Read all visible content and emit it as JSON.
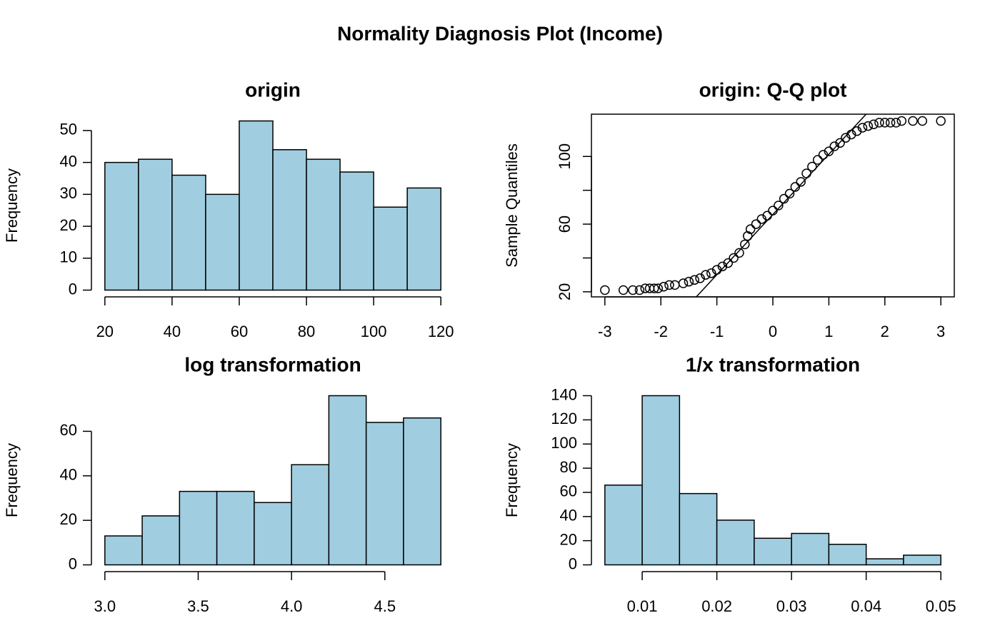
{
  "title": "Normality Diagnosis Plot (Income)",
  "chart_data": [
    {
      "type": "histogram",
      "title": "origin",
      "ylabel": "Frequency",
      "color": "#a0cee0",
      "bins": [
        20,
        30,
        40,
        50,
        60,
        70,
        80,
        90,
        100,
        110,
        120
      ],
      "values": [
        40,
        41,
        36,
        30,
        53,
        44,
        41,
        37,
        26,
        32
      ],
      "xlim": [
        16,
        124
      ],
      "ylim": [
        -2.12,
        55.12
      ],
      "xticks": [
        20,
        40,
        60,
        80,
        100,
        120
      ],
      "yticks": [
        0,
        10,
        20,
        30,
        40,
        50
      ]
    },
    {
      "type": "scatter",
      "title": "origin: Q-Q plot",
      "ylabel": "Sample Quantiles",
      "ytick_rotate": true,
      "box": true,
      "x": [
        -3.0,
        -2.67,
        -2.5,
        -2.38,
        -2.28,
        -2.2,
        -2.12,
        -2.05,
        -1.95,
        -1.85,
        -1.75,
        -1.6,
        -1.5,
        -1.4,
        -1.3,
        -1.2,
        -1.1,
        -1.0,
        -0.9,
        -0.8,
        -0.7,
        -0.6,
        -0.5,
        -0.45,
        -0.4,
        -0.3,
        -0.2,
        -0.1,
        0,
        0.1,
        0.2,
        0.3,
        0.4,
        0.5,
        0.6,
        0.7,
        0.8,
        0.9,
        1.0,
        1.1,
        1.2,
        1.3,
        1.4,
        1.5,
        1.6,
        1.7,
        1.8,
        1.9,
        2.0,
        2.1,
        2.2,
        2.3,
        2.5,
        2.67,
        3.0
      ],
      "values": [
        21,
        21,
        21,
        21,
        22,
        22,
        22,
        22,
        23,
        24,
        24,
        25,
        26,
        27,
        28,
        30,
        31,
        33,
        35,
        37,
        40,
        43,
        48,
        53,
        57,
        60,
        63,
        65,
        68,
        71,
        75,
        78,
        82,
        85,
        90,
        94,
        98,
        101,
        103,
        106,
        108,
        111,
        113,
        115,
        117,
        118,
        119,
        120,
        120,
        120,
        120,
        121,
        121,
        121,
        121
      ],
      "qqline": {
        "intercept": 65.7,
        "slope": 35.6
      },
      "xlim": [
        -3.24,
        3.24
      ],
      "ylim": [
        17,
        125
      ],
      "xticks": [
        -3,
        -2,
        -1,
        0,
        1,
        2,
        3
      ],
      "yticks": [
        20,
        60,
        100
      ],
      "yminorticks": [
        40,
        80
      ]
    },
    {
      "type": "histogram",
      "title": "log transformation",
      "ylabel": "Frequency",
      "color": "#a0cee0",
      "bins": [
        3.0,
        3.2,
        3.4,
        3.6,
        3.8,
        4.0,
        4.2,
        4.4,
        4.6,
        4.8
      ],
      "values": [
        13,
        22,
        33,
        33,
        28,
        45,
        76,
        64,
        66
      ],
      "xlim": [
        2.928,
        4.872
      ],
      "ylim": [
        -3.04,
        79.04
      ],
      "xticks": [
        {
          "value": 3,
          "label": "3.0"
        },
        3.5,
        {
          "value": 4,
          "label": "4.0"
        },
        4.5
      ],
      "yticks": [
        0,
        20,
        40,
        60
      ]
    },
    {
      "type": "histogram",
      "title": "1/x transformation",
      "ylabel": "Frequency",
      "color": "#a0cee0",
      "bins": [
        0.005,
        0.01,
        0.015,
        0.02,
        0.025,
        0.03,
        0.035,
        0.04,
        0.045,
        0.05
      ],
      "values": [
        66,
        140,
        59,
        37,
        22,
        26,
        17,
        5,
        8
      ],
      "xlim": [
        0.0032,
        0.0518
      ],
      "ylim": [
        -5.6,
        145.6
      ],
      "xticks": [
        0.01,
        0.02,
        0.03,
        0.04,
        0.05
      ],
      "yticks": [
        0,
        20,
        40,
        60,
        80,
        100,
        120,
        140
      ]
    }
  ]
}
